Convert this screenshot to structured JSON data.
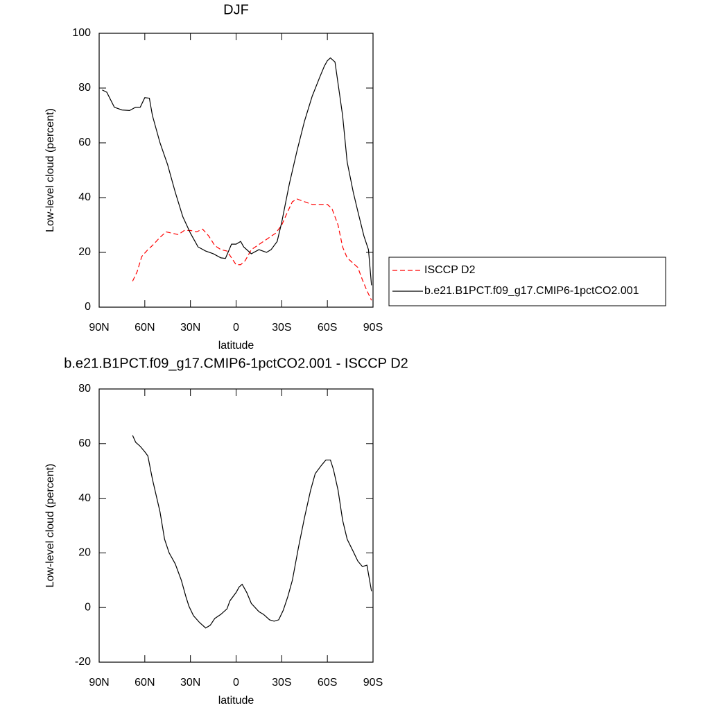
{
  "chart_data": [
    {
      "type": "line",
      "title": "DJF",
      "xlabel": "latitude",
      "ylabel": "Low-level cloud (percent)",
      "xlim": [
        90,
        -90
      ],
      "xticks": [
        {
          "value": 90,
          "label": "90N"
        },
        {
          "value": 60,
          "label": "60N"
        },
        {
          "value": 30,
          "label": "30N"
        },
        0,
        {
          "value": -30,
          "label": "30S"
        },
        {
          "value": -60,
          "label": "60S"
        },
        {
          "value": -90,
          "label": "90S"
        }
      ],
      "ylim": [
        0,
        100
      ],
      "yticks": [
        0,
        20,
        40,
        60,
        80,
        100
      ],
      "legend": "right",
      "series": [
        {
          "name": "ISCCP D2",
          "color": "#ff0000",
          "dash": true,
          "x": [
            68,
            65,
            62,
            58,
            55,
            50,
            46,
            42,
            38,
            34,
            30,
            26,
            22,
            18,
            14,
            10,
            6,
            3,
            0,
            -3,
            -6,
            -10,
            -14,
            -18,
            -22,
            -26,
            -30,
            -34,
            -37,
            -40,
            -45,
            -50,
            -55,
            -60,
            -63,
            -67,
            -70,
            -73,
            -77,
            -80,
            -83,
            -86,
            -89
          ],
          "values": [
            9.5,
            13,
            18.5,
            21,
            22.5,
            25.5,
            27.5,
            27,
            26.5,
            28,
            28,
            27.5,
            28.5,
            26,
            22.5,
            21,
            20.5,
            18,
            15.5,
            15.5,
            17,
            21,
            22.5,
            24,
            25.5,
            27,
            30,
            35,
            38.5,
            39.5,
            38.5,
            37.5,
            37.5,
            37.5,
            36,
            30,
            22,
            18,
            16,
            14.5,
            10,
            6,
            2.5
          ]
        },
        {
          "name": "b.e21.B1PCT.f09_g17.CMIP6-1pctCO2.001",
          "color": "#000000",
          "dash": false,
          "x": [
            88,
            85,
            80,
            75,
            70,
            66,
            63,
            60,
            57,
            55,
            50,
            45,
            40,
            35,
            30,
            25,
            20,
            15,
            10,
            7,
            3,
            0,
            -3,
            -5,
            -10,
            -15,
            -20,
            -23,
            -27,
            -30,
            -35,
            -40,
            -45,
            -50,
            -55,
            -58,
            -60,
            -62,
            -65,
            -70,
            -73,
            -77,
            -80,
            -84,
            -87,
            -89
          ],
          "values": [
            79.3,
            78.5,
            73,
            72,
            71.8,
            73,
            73,
            76.5,
            76.3,
            70,
            60,
            52,
            42,
            33,
            27,
            22,
            20.5,
            19.5,
            18,
            17.8,
            23,
            23,
            24,
            22,
            19.5,
            21,
            20,
            21,
            24,
            31,
            45,
            57,
            68,
            77,
            84,
            88,
            90,
            91,
            89.5,
            70,
            53,
            42,
            35,
            26,
            21,
            8
          ]
        }
      ]
    },
    {
      "type": "line",
      "title": "b.e21.B1PCT.f09_g17.CMIP6-1pctCO2.001 - ISCCP D2",
      "xlabel": "latitude",
      "ylabel": "Low-level cloud (percent)",
      "xlim": [
        90,
        -90
      ],
      "xticks": [
        {
          "value": 90,
          "label": "90N"
        },
        {
          "value": 60,
          "label": "60N"
        },
        {
          "value": 30,
          "label": "30N"
        },
        0,
        {
          "value": -30,
          "label": "30S"
        },
        {
          "value": -60,
          "label": "60S"
        },
        {
          "value": -90,
          "label": "90S"
        }
      ],
      "ylim": [
        -20,
        80
      ],
      "yticks": [
        -20,
        0,
        20,
        40,
        60,
        80
      ],
      "series": [
        {
          "color": "#000000",
          "dash": false,
          "x": [
            68,
            66,
            63,
            60,
            58,
            55,
            50,
            47,
            44,
            40,
            36,
            33,
            31,
            28,
            24,
            20,
            17,
            14,
            10,
            6,
            4,
            0,
            -2,
            -4,
            -7,
            -10,
            -15,
            -18,
            -22,
            -25,
            -28,
            -31,
            -34,
            -37,
            -41,
            -45,
            -49,
            -52,
            -56,
            -59,
            -62,
            -64,
            -67,
            -70,
            -73,
            -77,
            -80,
            -83,
            -86,
            -89
          ],
          "values": [
            63,
            60.5,
            59,
            57,
            55.5,
            47,
            35,
            25,
            20,
            16,
            10,
            4,
            0.5,
            -3,
            -5.5,
            -7.5,
            -6.5,
            -4,
            -2.5,
            -0.5,
            2.5,
            5.5,
            7.5,
            8.5,
            5.5,
            1.5,
            -1.5,
            -2.5,
            -4.5,
            -5,
            -4.5,
            -1,
            4,
            10,
            22,
            33,
            43,
            49,
            52,
            54,
            54,
            50.5,
            43,
            32,
            25,
            20.5,
            17,
            15,
            15.5,
            6
          ]
        }
      ]
    }
  ]
}
